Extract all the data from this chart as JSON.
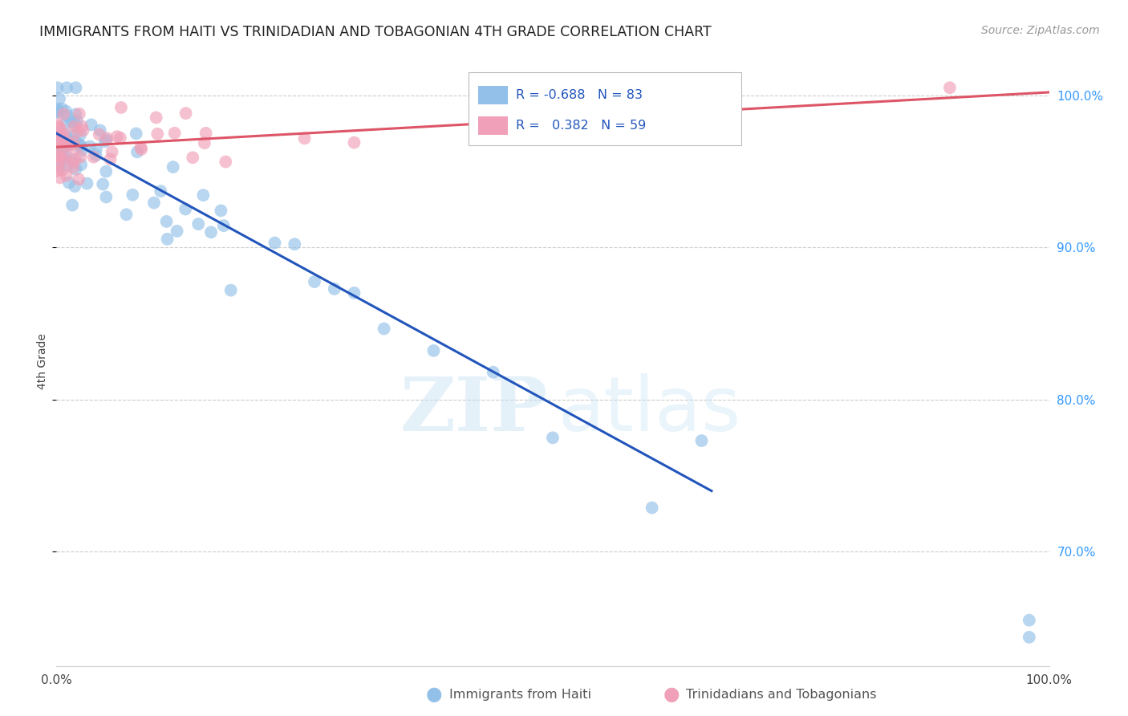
{
  "title": "IMMIGRANTS FROM HAITI VS TRINIDADIAN AND TOBAGONIAN 4TH GRADE CORRELATION CHART",
  "source": "Source: ZipAtlas.com",
  "ylabel": "4th Grade",
  "x_range": [
    0.0,
    1.0
  ],
  "y_range": [
    0.625,
    1.025
  ],
  "y_ticks": [
    0.7,
    0.8,
    0.9,
    1.0
  ],
  "y_tick_labels": [
    "70.0%",
    "80.0%",
    "90.0%",
    "100.0%"
  ],
  "legend_blue_r": "-0.688",
  "legend_blue_n": "83",
  "legend_pink_r": "0.382",
  "legend_pink_n": "59",
  "blue_color": "#92C0E8",
  "pink_color": "#F0A0B8",
  "blue_line_color": "#2255BB",
  "pink_line_color": "#DD5566",
  "blue_line_x": [
    0.0,
    0.66
  ],
  "blue_line_y": [
    0.975,
    0.74
  ],
  "pink_line_x": [
    0.0,
    1.0
  ],
  "pink_line_y": [
    0.966,
    1.002
  ],
  "watermark_zip": "ZIP",
  "watermark_atlas": "atlas",
  "background_color": "#ffffff",
  "grid_color": "#cccccc",
  "right_tick_color": "#3399FF",
  "title_color": "#222222",
  "source_color": "#999999",
  "legend_edge_color": "#bbbbbb",
  "bottom_legend_color": "#555555"
}
